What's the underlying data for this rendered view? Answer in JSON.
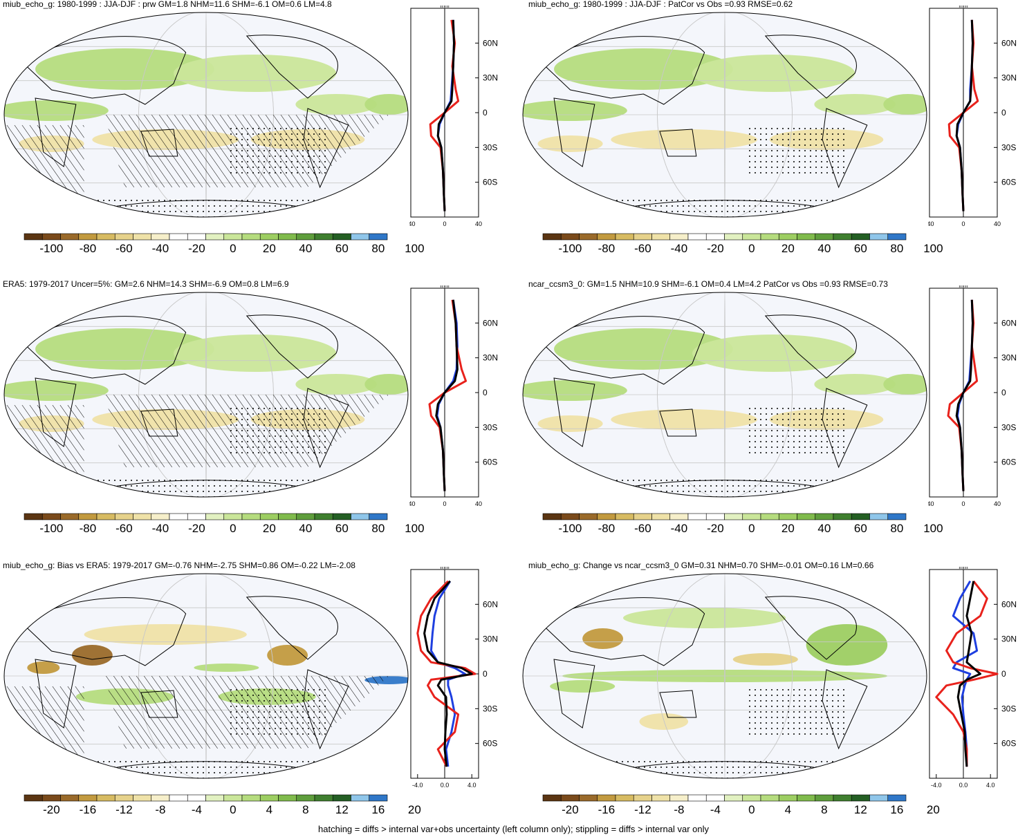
{
  "colors": {
    "brown": [
      "#5b3512",
      "#7a4a1b",
      "#9a6a2a",
      "#c29a3f",
      "#d7bb62",
      "#e6d28b",
      "#efe2a8",
      "#f6efca"
    ],
    "white": "#ffffff",
    "green": [
      "#e2f1c1",
      "#cae69a",
      "#b5dc7e",
      "#9dce62",
      "#80bb4c",
      "#5f9e3c",
      "#3f7f2f",
      "#245f24"
    ],
    "blue": [
      "#8fc6ea",
      "#2f77c8"
    ],
    "ocean": "#f4f6fb",
    "line_black": "#000000",
    "line_red": "#e8221c",
    "line_blue": "#1e3fe0"
  },
  "footer": "hatching = diffs > internal var+obs uncertainty (left column only); stippling = diffs > internal var only",
  "panels": [
    {
      "title": "miub_echo_g: 1980-1999 : JJA-DJF : prw GM=1.8 NHM=11.6 SHM=-6.1 OM=0.6 LM=4.8",
      "cb_labels": [
        "-100",
        "-80",
        "-60",
        "-40",
        "-20",
        "0",
        "20",
        "40",
        "60",
        "80",
        "100"
      ],
      "zonal_unit": "mm",
      "zonal_xticks": [
        "-40",
        "0",
        "40"
      ],
      "zonal_yticks": [
        "60N",
        "30N",
        "0",
        "30S",
        "60S"
      ]
    },
    {
      "title": "miub_echo_g: 1980-1999 : JJA-DJF : PatCor vs Obs =0.93 RMSE=0.62",
      "cb_labels": [
        "-100",
        "-80",
        "-60",
        "-40",
        "-20",
        "0",
        "20",
        "40",
        "60",
        "80",
        "100"
      ],
      "zonal_unit": "mm",
      "zonal_xticks": [
        "-40",
        "0",
        "40"
      ],
      "zonal_yticks": [
        "60N",
        "30N",
        "0",
        "30S",
        "60S"
      ]
    },
    {
      "title": "ERA5: 1979-2017 Uncer=5%: GM=2.6 NHM=14.3 SHM=-6.9 OM=0.8 LM=6.9",
      "cb_labels": [
        "-100",
        "-80",
        "-60",
        "-40",
        "-20",
        "0",
        "20",
        "40",
        "60",
        "80",
        "100"
      ],
      "zonal_unit": "mm",
      "zonal_xticks": [
        "-40",
        "0",
        "40"
      ],
      "zonal_yticks": [
        "60N",
        "30N",
        "0",
        "30S",
        "60S"
      ]
    },
    {
      "title": "ncar_ccsm3_0: GM=1.5 NHM=10.9 SHM=-6.1 OM=0.4 LM=4.2 PatCor vs Obs =0.93 RMSE=0.73",
      "cb_labels": [
        "-100",
        "-80",
        "-60",
        "-40",
        "-20",
        "0",
        "20",
        "40",
        "60",
        "80",
        "100"
      ],
      "zonal_unit": "mm",
      "zonal_xticks": [
        "-40",
        "0",
        "40"
      ],
      "zonal_yticks": [
        "60N",
        "30N",
        "0",
        "30S",
        "60S"
      ]
    },
    {
      "title": "miub_echo_g: Bias vs ERA5: 1979-2017 GM=-0.76 NHM=-2.75 SHM=0.86 OM=-0.22 LM=-2.08",
      "cb_labels": [
        "-20",
        "-16",
        "-12",
        "-8",
        "-4",
        "0",
        "4",
        "8",
        "12",
        "16",
        "20"
      ],
      "zonal_unit": "mm",
      "zonal_xticks": [
        "-4.0",
        "0.0",
        "4.0"
      ],
      "zonal_yticks": [
        "60N",
        "30N",
        "0",
        "30S",
        "60S"
      ]
    },
    {
      "title": "miub_echo_g: Change vs ncar_ccsm3_0 GM=0.31 NHM=0.70 SHM=-0.01 OM=0.16 LM=0.66",
      "cb_labels": [
        "-20",
        "-16",
        "-12",
        "-8",
        "-4",
        "0",
        "4",
        "8",
        "12",
        "16",
        "20"
      ],
      "zonal_unit": "mm",
      "zonal_xticks": [
        "-4.0",
        "0.0",
        "4.0"
      ],
      "zonal_yticks": [
        "60N",
        "30N",
        "0",
        "30S",
        "60S"
      ]
    }
  ],
  "chart_data": [
    {
      "type": "line",
      "panel": 1,
      "xlim": [
        -40,
        40
      ],
      "ylim": [
        -90,
        90
      ],
      "lat": [
        80,
        60,
        40,
        20,
        10,
        0,
        -10,
        -20,
        -30,
        -50,
        -70,
        -85
      ],
      "series": [
        {
          "color": "black",
          "values": [
            10,
            11,
            10,
            9,
            8,
            0,
            -7,
            -8,
            -4,
            -2,
            -1,
            0
          ]
        },
        {
          "color": "red",
          "values": [
            8,
            12,
            9,
            13,
            16,
            0,
            -17,
            -16,
            -5,
            -2,
            -1,
            0
          ]
        },
        {
          "color": "blue",
          "values": [
            10,
            11,
            10,
            8,
            7,
            0,
            -6,
            -8,
            -4,
            -2,
            -1,
            0
          ]
        }
      ]
    },
    {
      "type": "line",
      "panel": 2,
      "xlim": [
        -40,
        40
      ],
      "ylim": [
        -90,
        90
      ],
      "lat": [
        80,
        60,
        40,
        20,
        10,
        0,
        -10,
        -20,
        -30,
        -50,
        -70,
        -85
      ],
      "series": [
        {
          "color": "black",
          "values": [
            10,
            11,
            10,
            9,
            8,
            0,
            -7,
            -8,
            -4,
            -2,
            -1,
            0
          ]
        },
        {
          "color": "red",
          "values": [
            10,
            12,
            10,
            13,
            17,
            0,
            -17,
            -16,
            -5,
            -2,
            -1,
            0
          ]
        },
        {
          "color": "blue",
          "values": [
            10,
            11,
            10,
            8,
            8,
            0,
            -6,
            -8,
            -4,
            -2,
            -1,
            0
          ]
        }
      ]
    },
    {
      "type": "line",
      "panel": 3,
      "xlim": [
        -40,
        40
      ],
      "ylim": [
        -90,
        90
      ],
      "lat": [
        80,
        60,
        40,
        20,
        10,
        0,
        -10,
        -20,
        -30,
        -50,
        -70,
        -85
      ],
      "series": [
        {
          "color": "black",
          "values": [
            10,
            13,
            14,
            15,
            12,
            0,
            -8,
            -10,
            -5,
            -2,
            -1,
            0
          ]
        },
        {
          "color": "red",
          "values": [
            9,
            13,
            14,
            20,
            25,
            0,
            -18,
            -16,
            -6,
            -2,
            -1,
            0
          ]
        },
        {
          "color": "blue",
          "values": [
            10,
            14,
            15,
            14,
            10,
            0,
            -7,
            -9,
            -5,
            -2,
            -1,
            0
          ]
        }
      ]
    },
    {
      "type": "line",
      "panel": 4,
      "xlim": [
        -40,
        40
      ],
      "ylim": [
        -90,
        90
      ],
      "lat": [
        80,
        60,
        40,
        20,
        10,
        0,
        -10,
        -20,
        -30,
        -50,
        -70,
        -85
      ],
      "series": [
        {
          "color": "black",
          "values": [
            10,
            11,
            10,
            9,
            8,
            0,
            -6,
            -8,
            -4,
            -2,
            -1,
            0
          ]
        },
        {
          "color": "red",
          "values": [
            10,
            12,
            10,
            14,
            16,
            0,
            -16,
            -18,
            -5,
            -2,
            -1,
            0
          ]
        },
        {
          "color": "blue",
          "values": [
            10,
            11,
            10,
            8,
            7,
            0,
            -5,
            -7,
            -4,
            -2,
            -1,
            0
          ]
        }
      ]
    },
    {
      "type": "line",
      "panel": 5,
      "xlim": [
        -5,
        5
      ],
      "ylim": [
        -90,
        90
      ],
      "lat": [
        80,
        65,
        50,
        35,
        20,
        10,
        5,
        0,
        -5,
        -10,
        -20,
        -35,
        -50,
        -65,
        -80
      ],
      "series": [
        {
          "color": "black",
          "values": [
            0.8,
            -1.5,
            -2.5,
            -3.0,
            -2.5,
            -1.0,
            2.5,
            4.0,
            -0.5,
            -1.0,
            0.2,
            0.3,
            0.1,
            0.0,
            0.3
          ]
        },
        {
          "color": "red",
          "values": [
            0.5,
            -2.0,
            -3.5,
            -4.0,
            -3.5,
            -2.0,
            3.0,
            4.5,
            -2.0,
            -2.5,
            -1.5,
            2.0,
            1.5,
            -1.0,
            0.3
          ]
        },
        {
          "color": "blue",
          "values": [
            0.8,
            -0.8,
            -1.5,
            -1.8,
            -2.0,
            -1.0,
            1.5,
            3.0,
            0.5,
            0.5,
            1.0,
            1.5,
            1.0,
            0.2,
            0.5
          ]
        }
      ]
    },
    {
      "type": "line",
      "panel": 6,
      "xlim": [
        -5,
        5
      ],
      "ylim": [
        -90,
        90
      ],
      "lat": [
        80,
        65,
        50,
        35,
        20,
        10,
        5,
        0,
        -5,
        -10,
        -20,
        -35,
        -50,
        -65,
        -80
      ],
      "series": [
        {
          "color": "black",
          "values": [
            1.5,
            1.0,
            0.5,
            1.2,
            0.8,
            0.5,
            1.5,
            2.5,
            0.5,
            -0.5,
            -0.8,
            -0.3,
            0.2,
            0.3,
            0.5
          ]
        },
        {
          "color": "red",
          "values": [
            1.5,
            3.5,
            2.5,
            -1.0,
            -2.5,
            -1.5,
            1.0,
            5.0,
            1.5,
            -2.5,
            -4.0,
            -1.5,
            0.0,
            0.5,
            0.5
          ]
        },
        {
          "color": "blue",
          "values": [
            1.0,
            -0.5,
            -1.5,
            1.5,
            2.0,
            -1.0,
            -1.5,
            1.0,
            0.5,
            0.2,
            -0.2,
            0.0,
            0.3,
            0.5,
            0.5
          ]
        }
      ]
    }
  ]
}
